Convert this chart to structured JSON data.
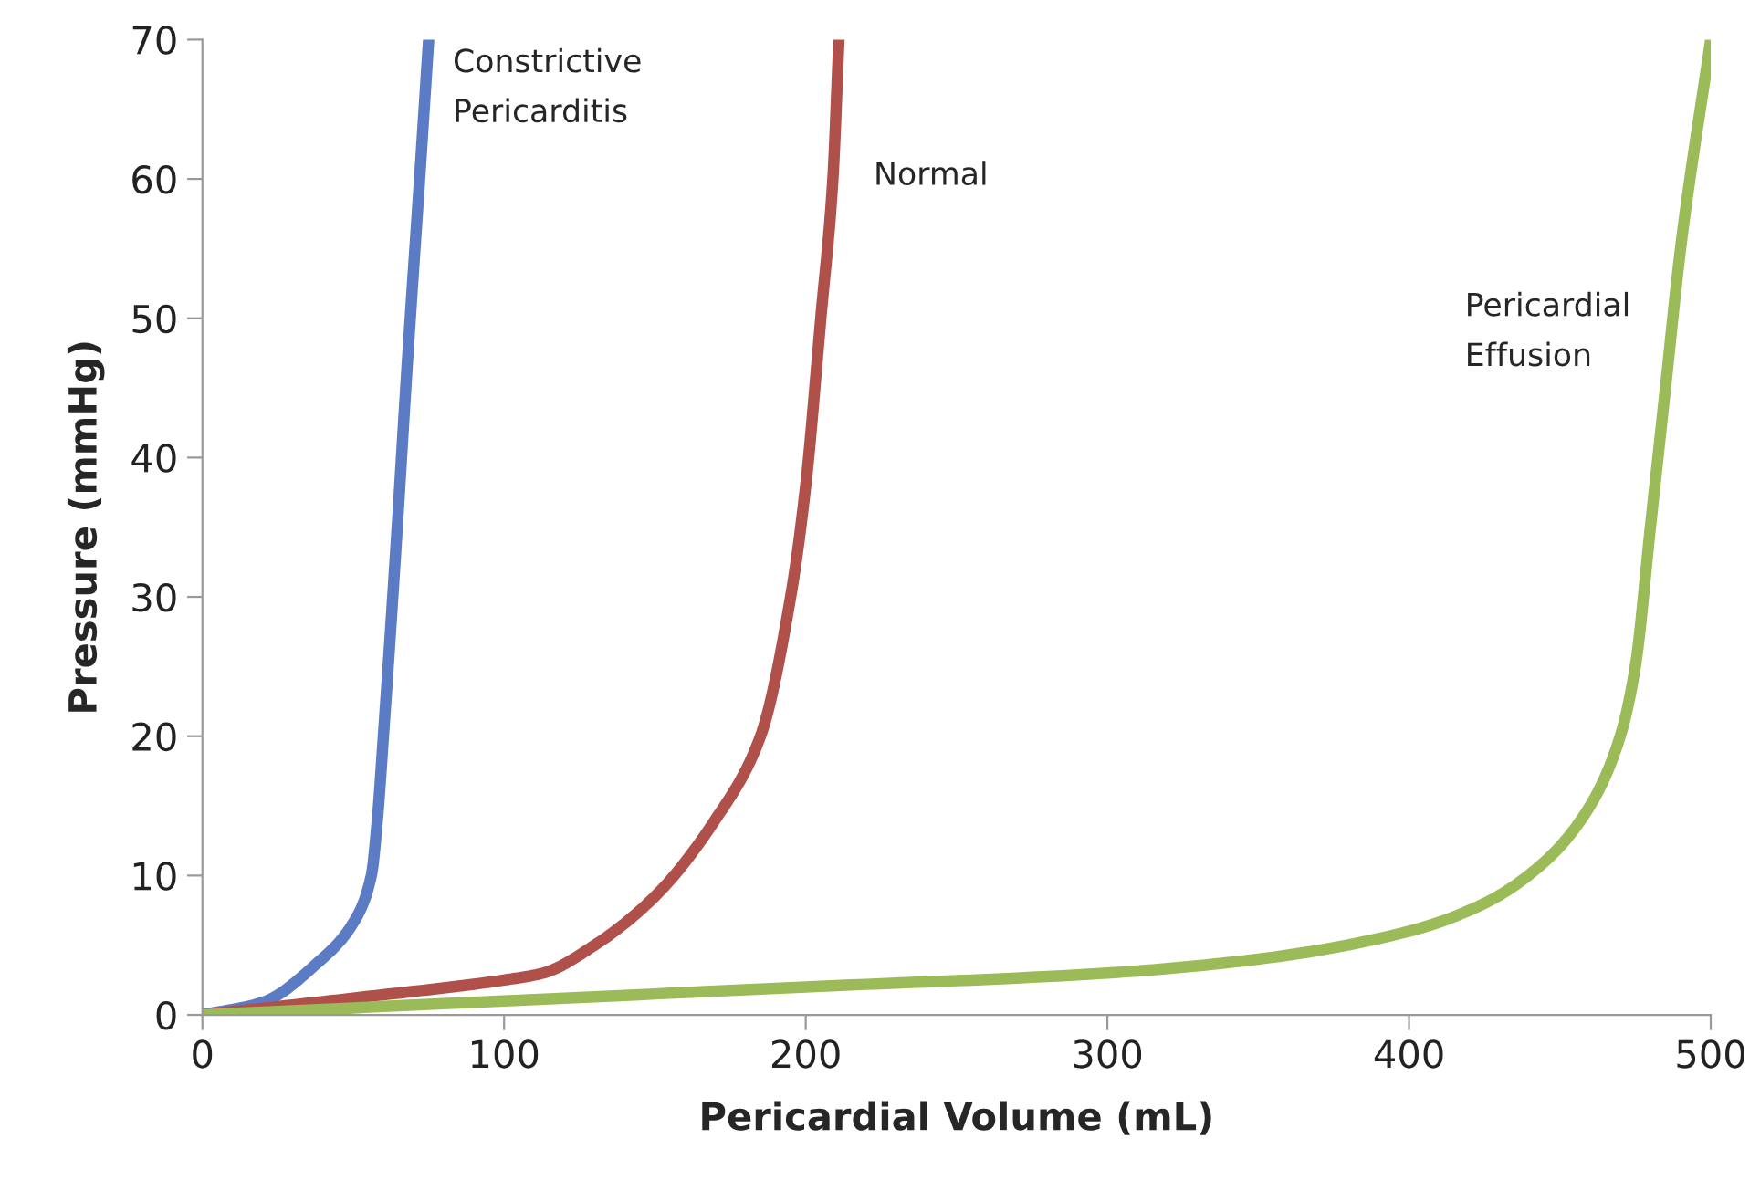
{
  "chart_data": {
    "type": "line",
    "xlabel": "Pericardial Volume (mL)",
    "ylabel": "Pressure (mmHg)",
    "xlim": [
      0,
      500
    ],
    "xticks": [
      0,
      100,
      200,
      300,
      400,
      500
    ],
    "ylim": [
      0,
      70
    ],
    "yticks": [
      0,
      10,
      20,
      30,
      40,
      50,
      60,
      70
    ],
    "grid": false,
    "marker": "none",
    "line_style": "solid",
    "series": [
      {
        "color": "#5b7cc4",
        "x": [
          0,
          20,
          38,
          50,
          56,
          58,
          60,
          64,
          68,
          72,
          75
        ],
        "values": [
          0,
          0.9,
          3.7,
          6.6,
          10,
          14,
          20,
          33,
          47,
          60,
          70
        ]
      },
      {
        "color": "#b0504a",
        "x": [
          0,
          50,
          100,
          113,
          130,
          150,
          170,
          185,
          195,
          200,
          205,
          209,
          211
        ],
        "values": [
          0,
          1.2,
          2.5,
          3,
          5,
          8.5,
          14,
          20,
          30,
          38,
          50,
          60,
          70
        ]
      },
      {
        "color": "#9bbb59",
        "x": [
          0,
          100,
          200,
          300,
          350,
          400,
          425,
          445,
          460,
          470,
          475,
          480,
          485,
          490,
          500
        ],
        "values": [
          0,
          1,
          2,
          3,
          4,
          6,
          8,
          11,
          15,
          20,
          25,
          35,
          45,
          55,
          70
        ]
      }
    ],
    "annotations": [
      "Constrictive\nPericarditis",
      "Normal",
      "Pericardial\nEffusion"
    ]
  }
}
